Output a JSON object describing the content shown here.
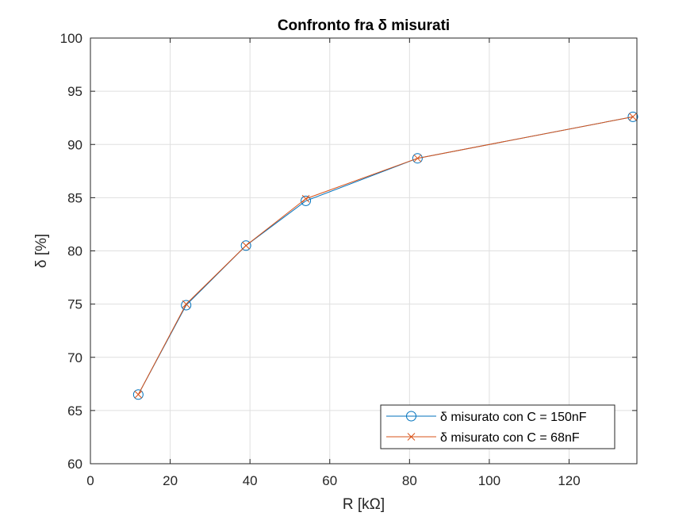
{
  "chart_data": {
    "type": "line",
    "title": "Confronto fra δ misurati",
    "xlabel": "R [kΩ]",
    "ylabel": "δ [%]",
    "xlim": [
      0,
      137
    ],
    "ylim": [
      60,
      100
    ],
    "xticks": [
      0,
      20,
      40,
      60,
      80,
      100,
      120
    ],
    "yticks": [
      60,
      65,
      70,
      75,
      80,
      85,
      90,
      95,
      100
    ],
    "grid": true,
    "legend_position": "bottom-right",
    "series": [
      {
        "name": "δ misurato con C = 150nF",
        "marker": "circle",
        "color": "#0072BD",
        "x": [
          12,
          24,
          39,
          54,
          82,
          136
        ],
        "y": [
          66.5,
          74.9,
          80.5,
          84.7,
          88.7,
          92.6
        ]
      },
      {
        "name": "δ misurato con C = 68nF",
        "marker": "cross",
        "color": "#D95319",
        "x": [
          12,
          24,
          39,
          54,
          82,
          136
        ],
        "y": [
          66.5,
          75.0,
          80.5,
          84.9,
          88.7,
          92.6
        ]
      }
    ]
  }
}
